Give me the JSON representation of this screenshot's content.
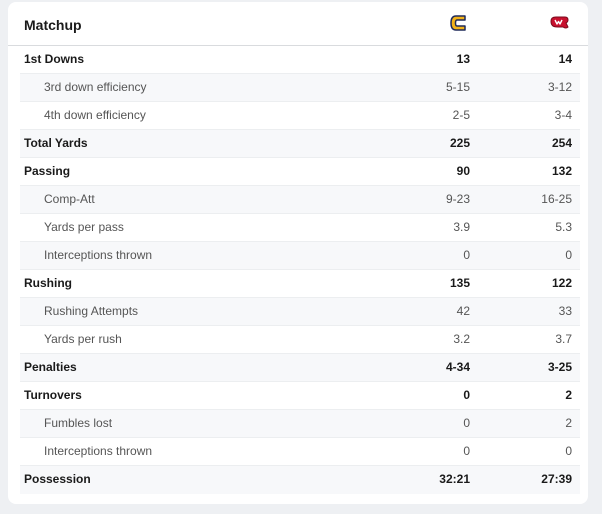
{
  "header": {
    "title": "Matchup",
    "team1_logo": "chattanooga-c-logo-icon",
    "team2_logo": "western-carolina-logo-icon"
  },
  "colors": {
    "team1_gold": "#F2B21A",
    "team1_navy": "#1F2A5A",
    "team2_red": "#C8102E"
  },
  "stats": [
    {
      "label": "1st Downs",
      "team1": "13",
      "team2": "14",
      "level": "main"
    },
    {
      "label": "3rd down efficiency",
      "team1": "5-15",
      "team2": "3-12",
      "level": "sub"
    },
    {
      "label": "4th down efficiency",
      "team1": "2-5",
      "team2": "3-4",
      "level": "sub"
    },
    {
      "label": "Total Yards",
      "team1": "225",
      "team2": "254",
      "level": "main"
    },
    {
      "label": "Passing",
      "team1": "90",
      "team2": "132",
      "level": "main"
    },
    {
      "label": "Comp-Att",
      "team1": "9-23",
      "team2": "16-25",
      "level": "sub"
    },
    {
      "label": "Yards per pass",
      "team1": "3.9",
      "team2": "5.3",
      "level": "sub"
    },
    {
      "label": "Interceptions thrown",
      "team1": "0",
      "team2": "0",
      "level": "sub"
    },
    {
      "label": "Rushing",
      "team1": "135",
      "team2": "122",
      "level": "main"
    },
    {
      "label": "Rushing Attempts",
      "team1": "42",
      "team2": "33",
      "level": "sub"
    },
    {
      "label": "Yards per rush",
      "team1": "3.2",
      "team2": "3.7",
      "level": "sub"
    },
    {
      "label": "Penalties",
      "team1": "4-34",
      "team2": "3-25",
      "level": "main"
    },
    {
      "label": "Turnovers",
      "team1": "0",
      "team2": "2",
      "level": "main"
    },
    {
      "label": "Fumbles lost",
      "team1": "0",
      "team2": "2",
      "level": "sub"
    },
    {
      "label": "Interceptions thrown",
      "team1": "0",
      "team2": "0",
      "level": "sub"
    },
    {
      "label": "Possession",
      "team1": "32:21",
      "team2": "27:39",
      "level": "main"
    }
  ]
}
